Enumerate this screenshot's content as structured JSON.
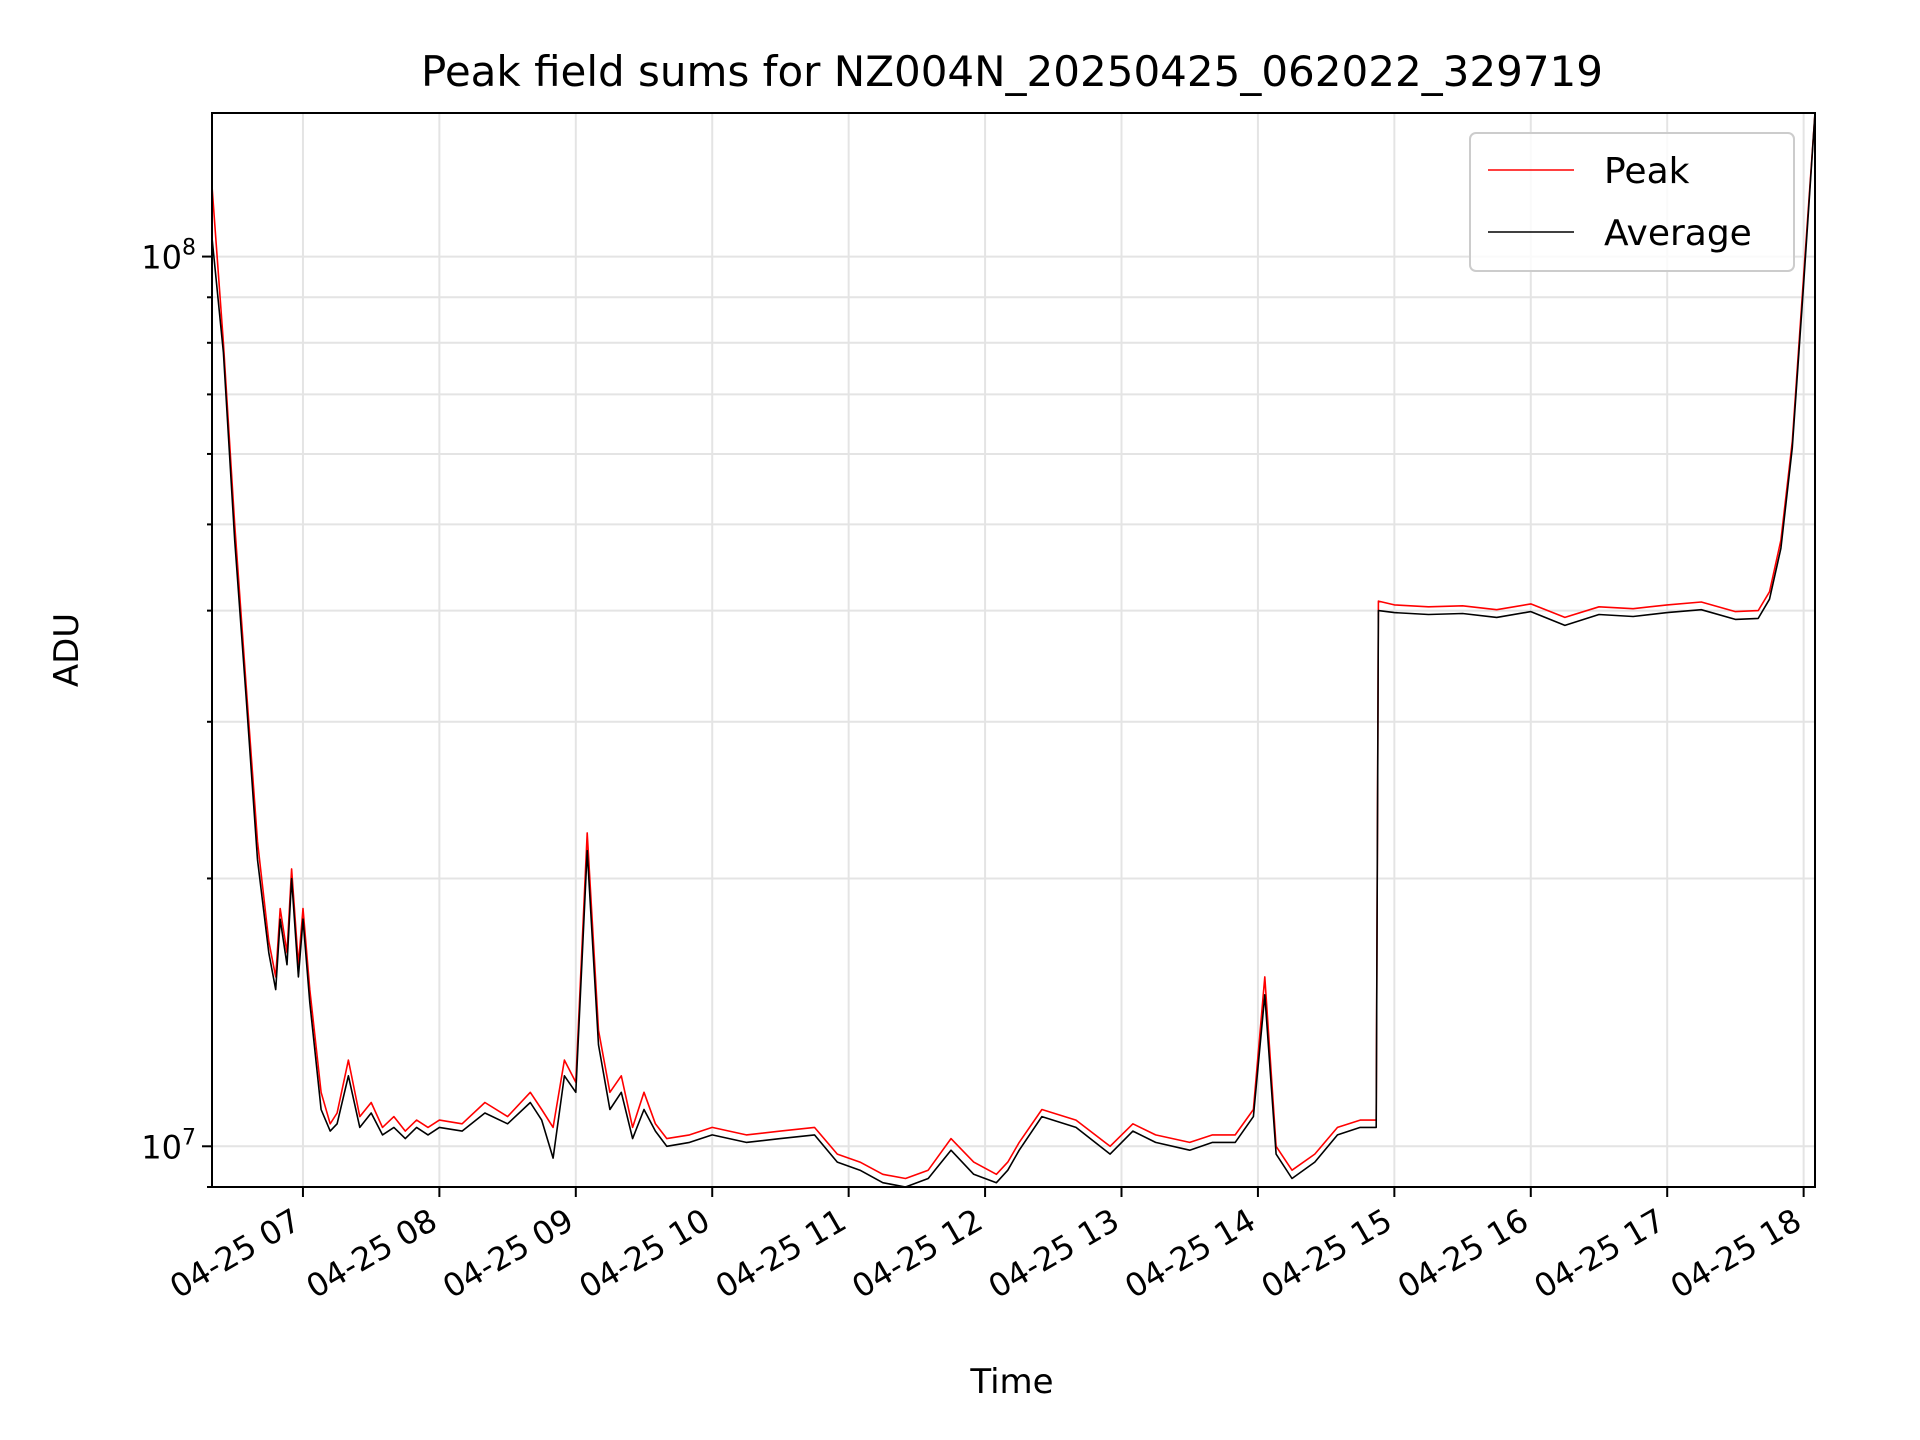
{
  "chart_data": {
    "type": "line",
    "title": "Peak field sums for NZ004N_20250425_062022_329719",
    "xlabel": "Time",
    "ylabel": "ADU",
    "yscale": "log",
    "ylim": [
      9000000,
      145000000
    ],
    "xlim": [
      "2025-04-25 06:20",
      "2025-04-25 18:05"
    ],
    "x_tick_labels": [
      "04-25 07",
      "04-25 08",
      "04-25 09",
      "04-25 10",
      "04-25 11",
      "04-25 12",
      "04-25 13",
      "04-25 14",
      "04-25 15",
      "04-25 16",
      "04-25 17",
      "04-25 18"
    ],
    "x_tick_times": [
      "2025-04-25 07:00",
      "2025-04-25 08:00",
      "2025-04-25 09:00",
      "2025-04-25 10:00",
      "2025-04-25 11:00",
      "2025-04-25 12:00",
      "2025-04-25 13:00",
      "2025-04-25 14:00",
      "2025-04-25 15:00",
      "2025-04-25 16:00",
      "2025-04-25 17:00",
      "2025-04-25 18:00"
    ],
    "y_tick_labels": [
      {
        "value": 10000000,
        "base": "10",
        "exp": "7"
      },
      {
        "value": 100000000,
        "base": "10",
        "exp": "8"
      }
    ],
    "grid": true,
    "legend_position": "top-right",
    "series": [
      {
        "name": "Peak",
        "color": "#ff0000",
        "x": [
          "2025-04-25 06:20",
          "2025-04-25 06:25",
          "2025-04-25 06:30",
          "2025-04-25 06:35",
          "2025-04-25 06:40",
          "2025-04-25 06:45",
          "2025-04-25 06:48",
          "2025-04-25 06:50",
          "2025-04-25 06:53",
          "2025-04-25 06:55",
          "2025-04-25 06:58",
          "2025-04-25 07:00",
          "2025-04-25 07:03",
          "2025-04-25 07:05",
          "2025-04-25 07:08",
          "2025-04-25 07:12",
          "2025-04-25 07:15",
          "2025-04-25 07:20",
          "2025-04-25 07:25",
          "2025-04-25 07:30",
          "2025-04-25 07:35",
          "2025-04-25 07:40",
          "2025-04-25 07:45",
          "2025-04-25 07:50",
          "2025-04-25 07:55",
          "2025-04-25 08:00",
          "2025-04-25 08:10",
          "2025-04-25 08:20",
          "2025-04-25 08:30",
          "2025-04-25 08:40",
          "2025-04-25 08:45",
          "2025-04-25 08:50",
          "2025-04-25 08:55",
          "2025-04-25 09:00",
          "2025-04-25 09:05",
          "2025-04-25 09:10",
          "2025-04-25 09:15",
          "2025-04-25 09:20",
          "2025-04-25 09:25",
          "2025-04-25 09:30",
          "2025-04-25 09:35",
          "2025-04-25 09:40",
          "2025-04-25 09:50",
          "2025-04-25 10:00",
          "2025-04-25 10:15",
          "2025-04-25 10:30",
          "2025-04-25 10:45",
          "2025-04-25 10:55",
          "2025-04-25 11:05",
          "2025-04-25 11:15",
          "2025-04-25 11:25",
          "2025-04-25 11:35",
          "2025-04-25 11:45",
          "2025-04-25 11:55",
          "2025-04-25 12:05",
          "2025-04-25 12:10",
          "2025-04-25 12:15",
          "2025-04-25 12:25",
          "2025-04-25 12:40",
          "2025-04-25 12:55",
          "2025-04-25 13:05",
          "2025-04-25 13:15",
          "2025-04-25 13:30",
          "2025-04-25 13:40",
          "2025-04-25 13:50",
          "2025-04-25 13:58",
          "2025-04-25 14:03",
          "2025-04-25 14:08",
          "2025-04-25 14:15",
          "2025-04-25 14:25",
          "2025-04-25 14:35",
          "2025-04-25 14:45",
          "2025-04-25 14:52",
          "2025-04-25 14:53",
          "2025-04-25 15:00",
          "2025-04-25 15:15",
          "2025-04-25 15:30",
          "2025-04-25 15:45",
          "2025-04-25 16:00",
          "2025-04-25 16:15",
          "2025-04-25 16:30",
          "2025-04-25 16:45",
          "2025-04-25 17:00",
          "2025-04-25 17:15",
          "2025-04-25 17:30",
          "2025-04-25 17:40",
          "2025-04-25 17:45",
          "2025-04-25 17:50",
          "2025-04-25 17:55",
          "2025-04-25 18:00",
          "2025-04-25 18:05"
        ],
        "y": [
          120000000,
          80000000,
          50000000,
          33000000,
          22000000,
          17000000,
          15500000,
          18500000,
          16500000,
          20500000,
          16000000,
          18500000,
          15000000,
          13500000,
          11500000,
          10600000,
          10900000,
          12500000,
          10800000,
          11200000,
          10500000,
          10800000,
          10400000,
          10700000,
          10500000,
          10700000,
          10600000,
          11200000,
          10800000,
          11500000,
          11000000,
          10500000,
          12500000,
          11800000,
          22500000,
          13500000,
          11500000,
          12000000,
          10500000,
          11500000,
          10600000,
          10200000,
          10300000,
          10500000,
          10300000,
          10400000,
          10500000,
          9800000,
          9600000,
          9300000,
          9200000,
          9400000,
          10200000,
          9600000,
          9300000,
          9600000,
          10100000,
          11000000,
          10700000,
          10000000,
          10600000,
          10300000,
          10100000,
          10300000,
          10300000,
          11000000,
          15500000,
          10000000,
          9400000,
          9800000,
          10500000,
          10700000,
          10700000,
          41000000,
          40600000,
          40400000,
          40500000,
          40100000,
          40700000,
          39300000,
          40400000,
          40200000,
          40600000,
          40900000,
          39900000,
          40000000,
          42000000,
          48000000,
          62000000,
          95000000,
          145000000
        ]
      },
      {
        "name": "Average",
        "color": "#000000",
        "x": [
          "2025-04-25 06:20",
          "2025-04-25 06:25",
          "2025-04-25 06:30",
          "2025-04-25 06:35",
          "2025-04-25 06:40",
          "2025-04-25 06:45",
          "2025-04-25 06:48",
          "2025-04-25 06:50",
          "2025-04-25 06:53",
          "2025-04-25 06:55",
          "2025-04-25 06:58",
          "2025-04-25 07:00",
          "2025-04-25 07:03",
          "2025-04-25 07:05",
          "2025-04-25 07:08",
          "2025-04-25 07:12",
          "2025-04-25 07:15",
          "2025-04-25 07:20",
          "2025-04-25 07:25",
          "2025-04-25 07:30",
          "2025-04-25 07:35",
          "2025-04-25 07:40",
          "2025-04-25 07:45",
          "2025-04-25 07:50",
          "2025-04-25 07:55",
          "2025-04-25 08:00",
          "2025-04-25 08:10",
          "2025-04-25 08:20",
          "2025-04-25 08:30",
          "2025-04-25 08:40",
          "2025-04-25 08:45",
          "2025-04-25 08:50",
          "2025-04-25 08:55",
          "2025-04-25 09:00",
          "2025-04-25 09:05",
          "2025-04-25 09:10",
          "2025-04-25 09:15",
          "2025-04-25 09:20",
          "2025-04-25 09:25",
          "2025-04-25 09:30",
          "2025-04-25 09:35",
          "2025-04-25 09:40",
          "2025-04-25 09:50",
          "2025-04-25 10:00",
          "2025-04-25 10:15",
          "2025-04-25 10:30",
          "2025-04-25 10:45",
          "2025-04-25 10:55",
          "2025-04-25 11:05",
          "2025-04-25 11:15",
          "2025-04-25 11:25",
          "2025-04-25 11:35",
          "2025-04-25 11:45",
          "2025-04-25 11:55",
          "2025-04-25 12:05",
          "2025-04-25 12:10",
          "2025-04-25 12:15",
          "2025-04-25 12:25",
          "2025-04-25 12:40",
          "2025-04-25 12:55",
          "2025-04-25 13:05",
          "2025-04-25 13:15",
          "2025-04-25 13:30",
          "2025-04-25 13:40",
          "2025-04-25 13:50",
          "2025-04-25 13:58",
          "2025-04-25 14:03",
          "2025-04-25 14:08",
          "2025-04-25 14:15",
          "2025-04-25 14:25",
          "2025-04-25 14:35",
          "2025-04-25 14:45",
          "2025-04-25 14:52",
          "2025-04-25 14:53",
          "2025-04-25 15:00",
          "2025-04-25 15:15",
          "2025-04-25 15:30",
          "2025-04-25 15:45",
          "2025-04-25 16:00",
          "2025-04-25 16:15",
          "2025-04-25 16:30",
          "2025-04-25 16:45",
          "2025-04-25 17:00",
          "2025-04-25 17:15",
          "2025-04-25 17:30",
          "2025-04-25 17:40",
          "2025-04-25 17:45",
          "2025-04-25 17:50",
          "2025-04-25 17:55",
          "2025-04-25 18:00",
          "2025-04-25 18:05"
        ],
        "y": [
          105000000,
          78000000,
          48000000,
          32000000,
          21000000,
          16500000,
          15000000,
          18000000,
          16000000,
          20000000,
          15500000,
          18000000,
          14500000,
          13000000,
          11000000,
          10400000,
          10600000,
          12000000,
          10500000,
          10900000,
          10300000,
          10500000,
          10200000,
          10500000,
          10300000,
          10500000,
          10400000,
          10900000,
          10600000,
          11200000,
          10700000,
          9700000,
          12000000,
          11500000,
          21500000,
          13000000,
          11000000,
          11500000,
          10200000,
          11000000,
          10400000,
          10000000,
          10100000,
          10300000,
          10100000,
          10200000,
          10300000,
          9600000,
          9400000,
          9100000,
          9000000,
          9200000,
          9900000,
          9300000,
          9100000,
          9400000,
          9900000,
          10800000,
          10500000,
          9800000,
          10400000,
          10100000,
          9900000,
          10100000,
          10100000,
          10800000,
          14800000,
          9800000,
          9200000,
          9600000,
          10300000,
          10500000,
          10500000,
          40000000,
          39800000,
          39600000,
          39700000,
          39300000,
          39900000,
          38500000,
          39600000,
          39400000,
          39800000,
          40100000,
          39100000,
          39200000,
          41200000,
          47000000,
          61000000,
          93000000,
          145000000
        ]
      }
    ]
  }
}
